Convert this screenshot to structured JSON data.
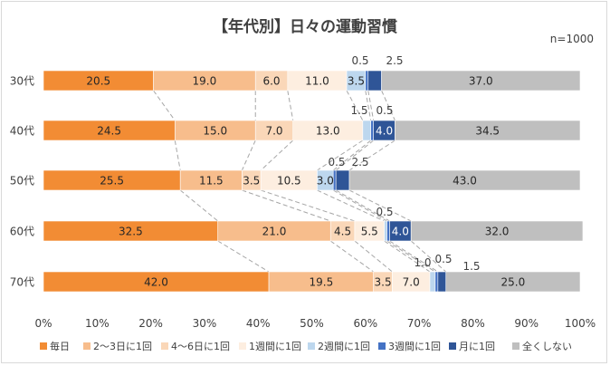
{
  "chart_data": {
    "type": "bar",
    "orientation": "horizontal",
    "stacked": true,
    "percent": true,
    "title": "【年代別】日々の運動習慣",
    "note": "n=1000",
    "categories": [
      "30代",
      "40代",
      "50代",
      "60代",
      "70代"
    ],
    "xlim": [
      0,
      100
    ],
    "xticks": [
      "0%",
      "10%",
      "20%",
      "30%",
      "40%",
      "50%",
      "60%",
      "70%",
      "80%",
      "90%",
      "100%"
    ],
    "grid": false,
    "legend": "bottom",
    "series_lines": true,
    "series": [
      {
        "name": "毎日",
        "color": "#f28c34",
        "values": [
          20.5,
          24.5,
          25.5,
          32.5,
          42.0
        ]
      },
      {
        "name": "2～3日に1回",
        "color": "#f7bd8c",
        "values": [
          19.0,
          15.0,
          11.5,
          21.0,
          19.5
        ]
      },
      {
        "name": "4～6日に1回",
        "color": "#fad7b8",
        "values": [
          6.0,
          7.0,
          3.5,
          4.5,
          3.5
        ]
      },
      {
        "name": "1週間に1回",
        "color": "#fdeee0",
        "values": [
          11.0,
          13.0,
          10.5,
          5.5,
          7.0
        ]
      },
      {
        "name": "2週間に1回",
        "color": "#bdd7ee",
        "values": [
          3.5,
          1.5,
          3.0,
          0.5,
          1.0
        ]
      },
      {
        "name": "3週間に1回",
        "color": "#4472c4",
        "values": [
          0.5,
          0.5,
          0.5,
          0.5,
          0.5
        ]
      },
      {
        "name": "月に1回",
        "color": "#2f5597",
        "values": [
          2.5,
          4.0,
          2.5,
          4.0,
          1.5
        ]
      },
      {
        "name": "全くしない",
        "color": "#bfbfbf",
        "values": [
          37.0,
          34.5,
          43.0,
          32.0,
          25.0
        ]
      }
    ],
    "labels": [
      [
        "20.5",
        "19.0",
        "6.0",
        "11.0",
        "3.5",
        "0.5",
        "2.5",
        "37.0"
      ],
      [
        "24.5",
        "15.0",
        "7.0",
        "13.0",
        "1.5",
        "0.5",
        "4.0",
        "34.5"
      ],
      [
        "25.5",
        "11.5",
        "3.5",
        "10.5",
        "3.0",
        "0.5",
        "2.5",
        "43.0"
      ],
      [
        "32.5",
        "21.0",
        "4.5",
        "5.5",
        "0.5",
        "0.5",
        "4.0",
        "32.0"
      ],
      [
        "42.0",
        "19.5",
        "3.5",
        "7.0",
        "1.0",
        "0.5",
        "1.5",
        "25.0"
      ]
    ]
  }
}
